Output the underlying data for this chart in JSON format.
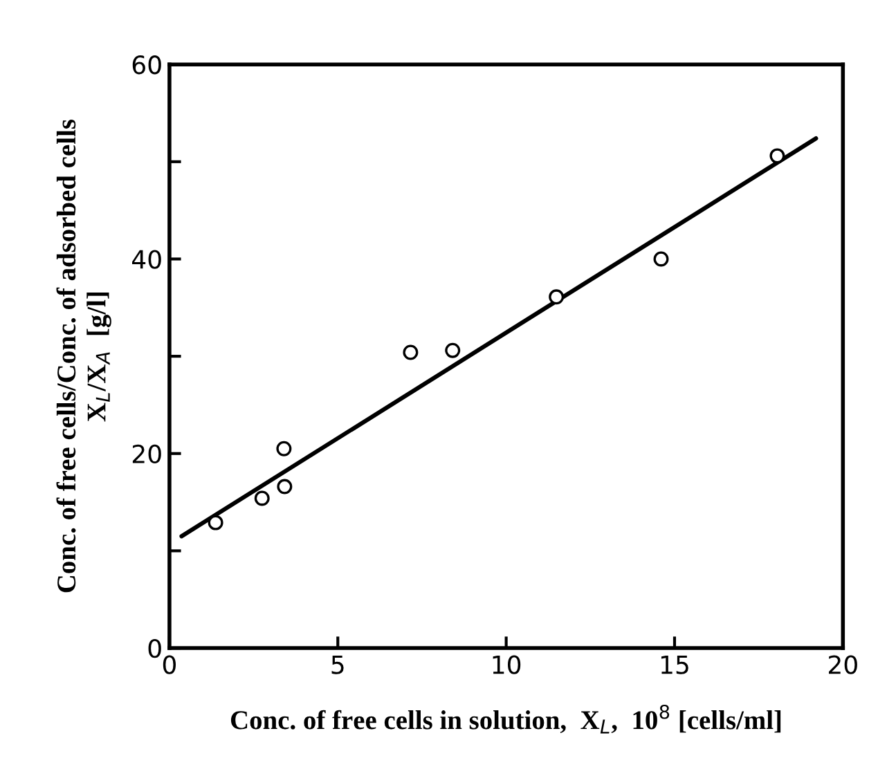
{
  "chart_data": {
    "type": "scatter",
    "xlabel": "Conc. of free cells in solution,  X$_{L}$,  10$^{8}$ [cells/ml]",
    "ylabel": "Conc. of free cells/Conc. of adsorbed cells\nX$_{L}$/X$_{A}$  [g/l]",
    "series": [
      {
        "color": "#000000",
        "marker": "circle",
        "x": [
          1.37,
          2.75,
          3.4,
          3.42,
          7.16,
          8.41,
          11.49,
          14.6,
          18.05
        ],
        "values": [
          12.9,
          15.4,
          20.5,
          16.6,
          30.4,
          30.6,
          36.1,
          40.0,
          50.6
        ]
      },
      {
        "type": "line",
        "color": "#000000",
        "line_style": "solid",
        "marker": "none",
        "x": [
          0.36,
          19.2
        ],
        "values": [
          11.5,
          52.4
        ]
      }
    ],
    "xlim": [
      0,
      20
    ],
    "ylim": [
      0,
      60
    ],
    "xticks": [
      0,
      5,
      10,
      15,
      20
    ],
    "yticks": [
      0,
      {
        "value": 10,
        "label": null
      },
      20,
      {
        "value": 30,
        "label": null
      },
      40,
      {
        "value": 50,
        "label": null
      },
      60
    ],
    "grid": false,
    "legend": false
  }
}
